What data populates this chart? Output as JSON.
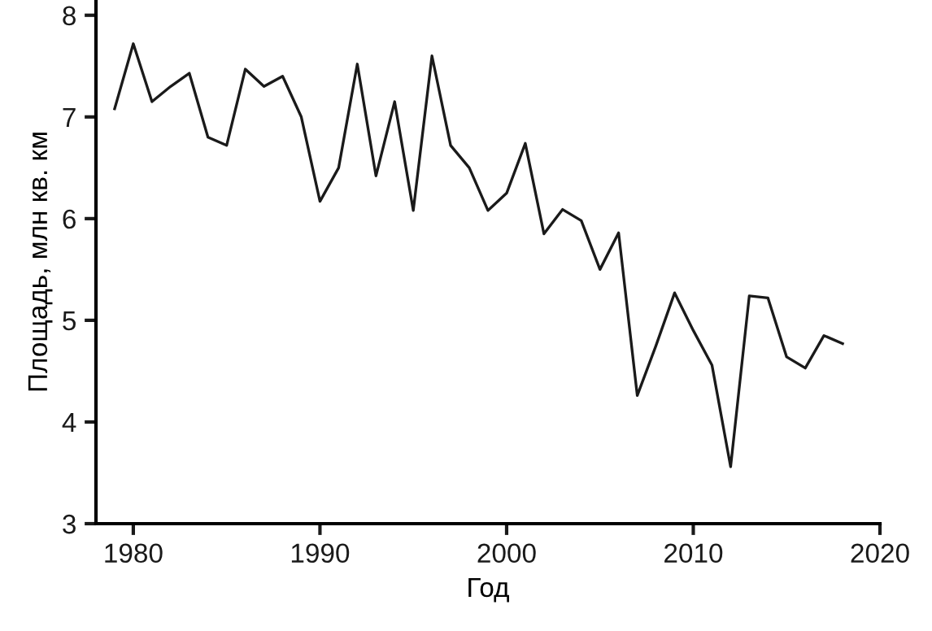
{
  "chart_data": {
    "type": "line",
    "xlabel": "Год",
    "ylabel": "Площадь, млн кв. км",
    "x": [
      1979,
      1980,
      1981,
      1982,
      1983,
      1984,
      1985,
      1986,
      1987,
      1988,
      1989,
      1990,
      1991,
      1992,
      1993,
      1994,
      1995,
      1996,
      1997,
      1998,
      1999,
      2000,
      2001,
      2002,
      2003,
      2004,
      2005,
      2006,
      2007,
      2008,
      2009,
      2010,
      2011,
      2012,
      2013,
      2014,
      2015,
      2016,
      2017,
      2018
    ],
    "series": [
      {
        "color": "#1a1a1a",
        "values": [
          7.08,
          7.72,
          7.15,
          7.3,
          7.43,
          6.8,
          6.72,
          7.47,
          7.3,
          7.4,
          7.0,
          6.17,
          6.5,
          7.52,
          6.42,
          7.15,
          6.08,
          7.6,
          6.72,
          6.5,
          6.08,
          6.25,
          6.74,
          5.85,
          6.09,
          5.98,
          5.5,
          5.86,
          4.26,
          4.75,
          5.27,
          4.9,
          4.56,
          3.56,
          5.24,
          5.22,
          4.64,
          4.53,
          4.85,
          4.77
        ]
      }
    ],
    "xlim": [
      1978,
      2020
    ],
    "ylim": [
      3,
      8.15
    ],
    "xticks": [
      1980,
      1990,
      2000,
      2010,
      2020
    ],
    "yticks": [
      3,
      4,
      5,
      6,
      7,
      8
    ],
    "grid": false,
    "legend": false,
    "marker": "none",
    "line_style": "solid"
  }
}
